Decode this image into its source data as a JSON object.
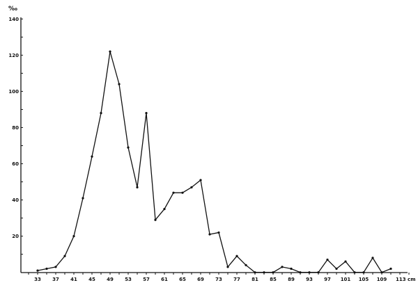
{
  "chart_data": {
    "type": "line",
    "title": "",
    "ylabel": "‰",
    "xlabel": "cm",
    "xlim": [
      30,
      116
    ],
    "ylim": [
      0,
      140
    ],
    "grid": false,
    "line_color": "#111111",
    "x_tick_labels": [
      "33",
      "37",
      "41",
      "45",
      "49",
      "53",
      "57",
      "61",
      "65",
      "69",
      "73",
      "77",
      "81",
      "85",
      "89",
      "93",
      "97",
      "101",
      "105",
      "109",
      "113 cm"
    ],
    "x_ticks": [
      33,
      37,
      41,
      45,
      49,
      53,
      57,
      61,
      65,
      69,
      73,
      77,
      81,
      85,
      89,
      93,
      97,
      101,
      105,
      109,
      113
    ],
    "y_tick_labels": [
      "20",
      "40",
      "60",
      "80",
      "100",
      "120",
      "140"
    ],
    "y_ticks": [
      20,
      40,
      60,
      80,
      100,
      120,
      140
    ],
    "series": [
      {
        "x": [
          33,
          35,
          37,
          39,
          41,
          43,
          45,
          47,
          49,
          51,
          53,
          55,
          57,
          59,
          61,
          63,
          65,
          67,
          69,
          71,
          73,
          75,
          77,
          79,
          81,
          83,
          85,
          87,
          89,
          91,
          93,
          95,
          97,
          99,
          101,
          103,
          105,
          107,
          109,
          111
        ],
        "y": [
          1,
          2,
          3,
          9,
          20,
          41,
          64,
          88,
          122,
          104,
          69,
          47,
          88,
          29,
          35,
          44,
          44,
          47,
          51,
          21,
          22,
          3,
          9,
          4,
          0,
          0,
          0,
          3,
          2,
          0,
          0,
          0,
          7,
          2,
          6,
          0,
          0,
          8,
          0,
          2
        ]
      }
    ]
  }
}
